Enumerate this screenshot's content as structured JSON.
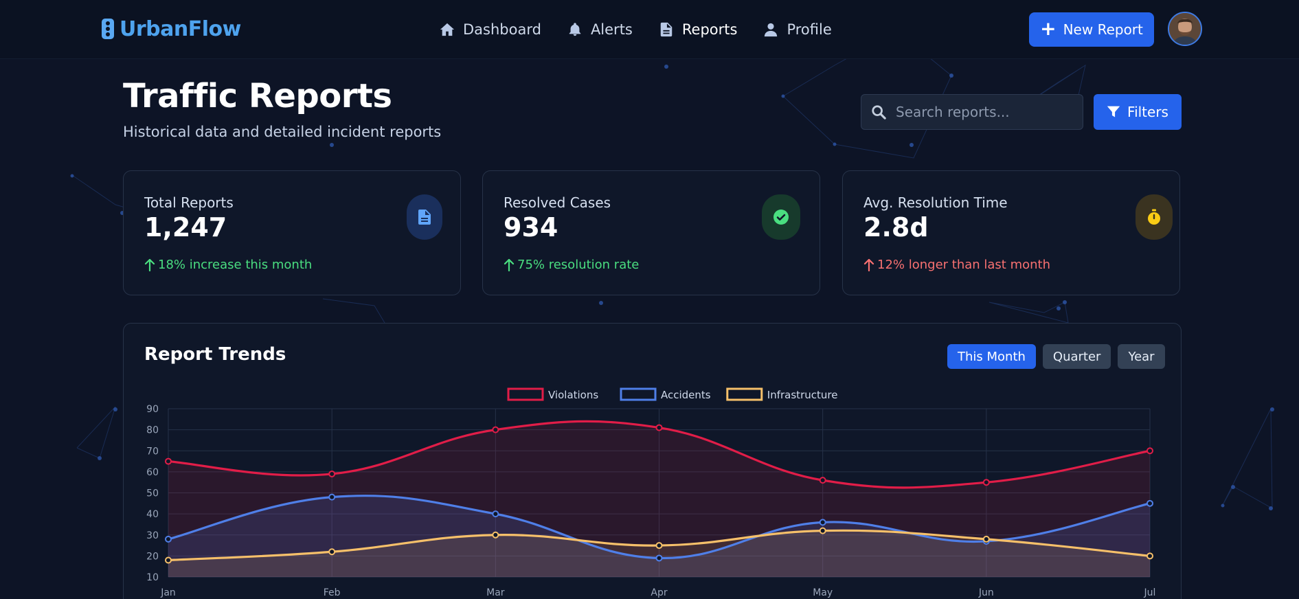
{
  "app": {
    "brand": "UrbanFlow"
  },
  "nav": {
    "links": [
      {
        "label": "Dashboard",
        "icon": "home-icon"
      },
      {
        "label": "Alerts",
        "icon": "bell-icon"
      },
      {
        "label": "Reports",
        "icon": "document-icon",
        "active": true
      },
      {
        "label": "Profile",
        "icon": "user-icon"
      }
    ],
    "new_report_label": "New Report"
  },
  "header": {
    "title": "Traffic Reports",
    "subtitle": "Historical data and detailed incident reports",
    "search_placeholder": "Search reports...",
    "filters_label": "Filters"
  },
  "stats": [
    {
      "label": "Total Reports",
      "value": "1,247",
      "trend": "18% increase this month",
      "trend_tone": "positive",
      "icon": "document-icon",
      "accent": "#60a5fa"
    },
    {
      "label": "Resolved Cases",
      "value": "934",
      "trend": "75% resolution rate",
      "trend_tone": "positive",
      "icon": "check-circle-icon",
      "accent": "#4ade80"
    },
    {
      "label": "Avg. Resolution Time",
      "value": "2.8d",
      "trend": "12% longer than last month",
      "trend_tone": "negative",
      "icon": "stopwatch-icon",
      "accent": "#facc15"
    }
  ],
  "trends": {
    "title": "Report Trends",
    "ranges": [
      {
        "label": "This Month",
        "active": true
      },
      {
        "label": "Quarter",
        "active": false
      },
      {
        "label": "Year",
        "active": false
      }
    ]
  },
  "colors": {
    "accent": "#2563eb",
    "violations": "#e11d48",
    "accidents": "#4f7fe8",
    "infrastructure": "#f6c06a"
  },
  "chart_data": {
    "type": "line",
    "x": [
      "Jan",
      "Feb",
      "Mar",
      "Apr",
      "May",
      "Jun",
      "Jul"
    ],
    "series": [
      {
        "name": "Violations",
        "values": [
          65,
          59,
          80,
          81,
          56,
          55,
          70
        ],
        "color": "#e11d48"
      },
      {
        "name": "Accidents",
        "values": [
          28,
          48,
          40,
          19,
          36,
          27,
          45
        ],
        "color": "#4f7fe8"
      },
      {
        "name": "Infrastructure",
        "values": [
          18,
          22,
          30,
          25,
          32,
          28,
          20
        ],
        "color": "#f6c06a"
      }
    ],
    "yticks": [
      10,
      20,
      30,
      40,
      50,
      60,
      70,
      80,
      90
    ],
    "ylim": [
      10,
      90
    ],
    "grid": true,
    "legend": "top-center",
    "fill": true,
    "smooth": true
  }
}
